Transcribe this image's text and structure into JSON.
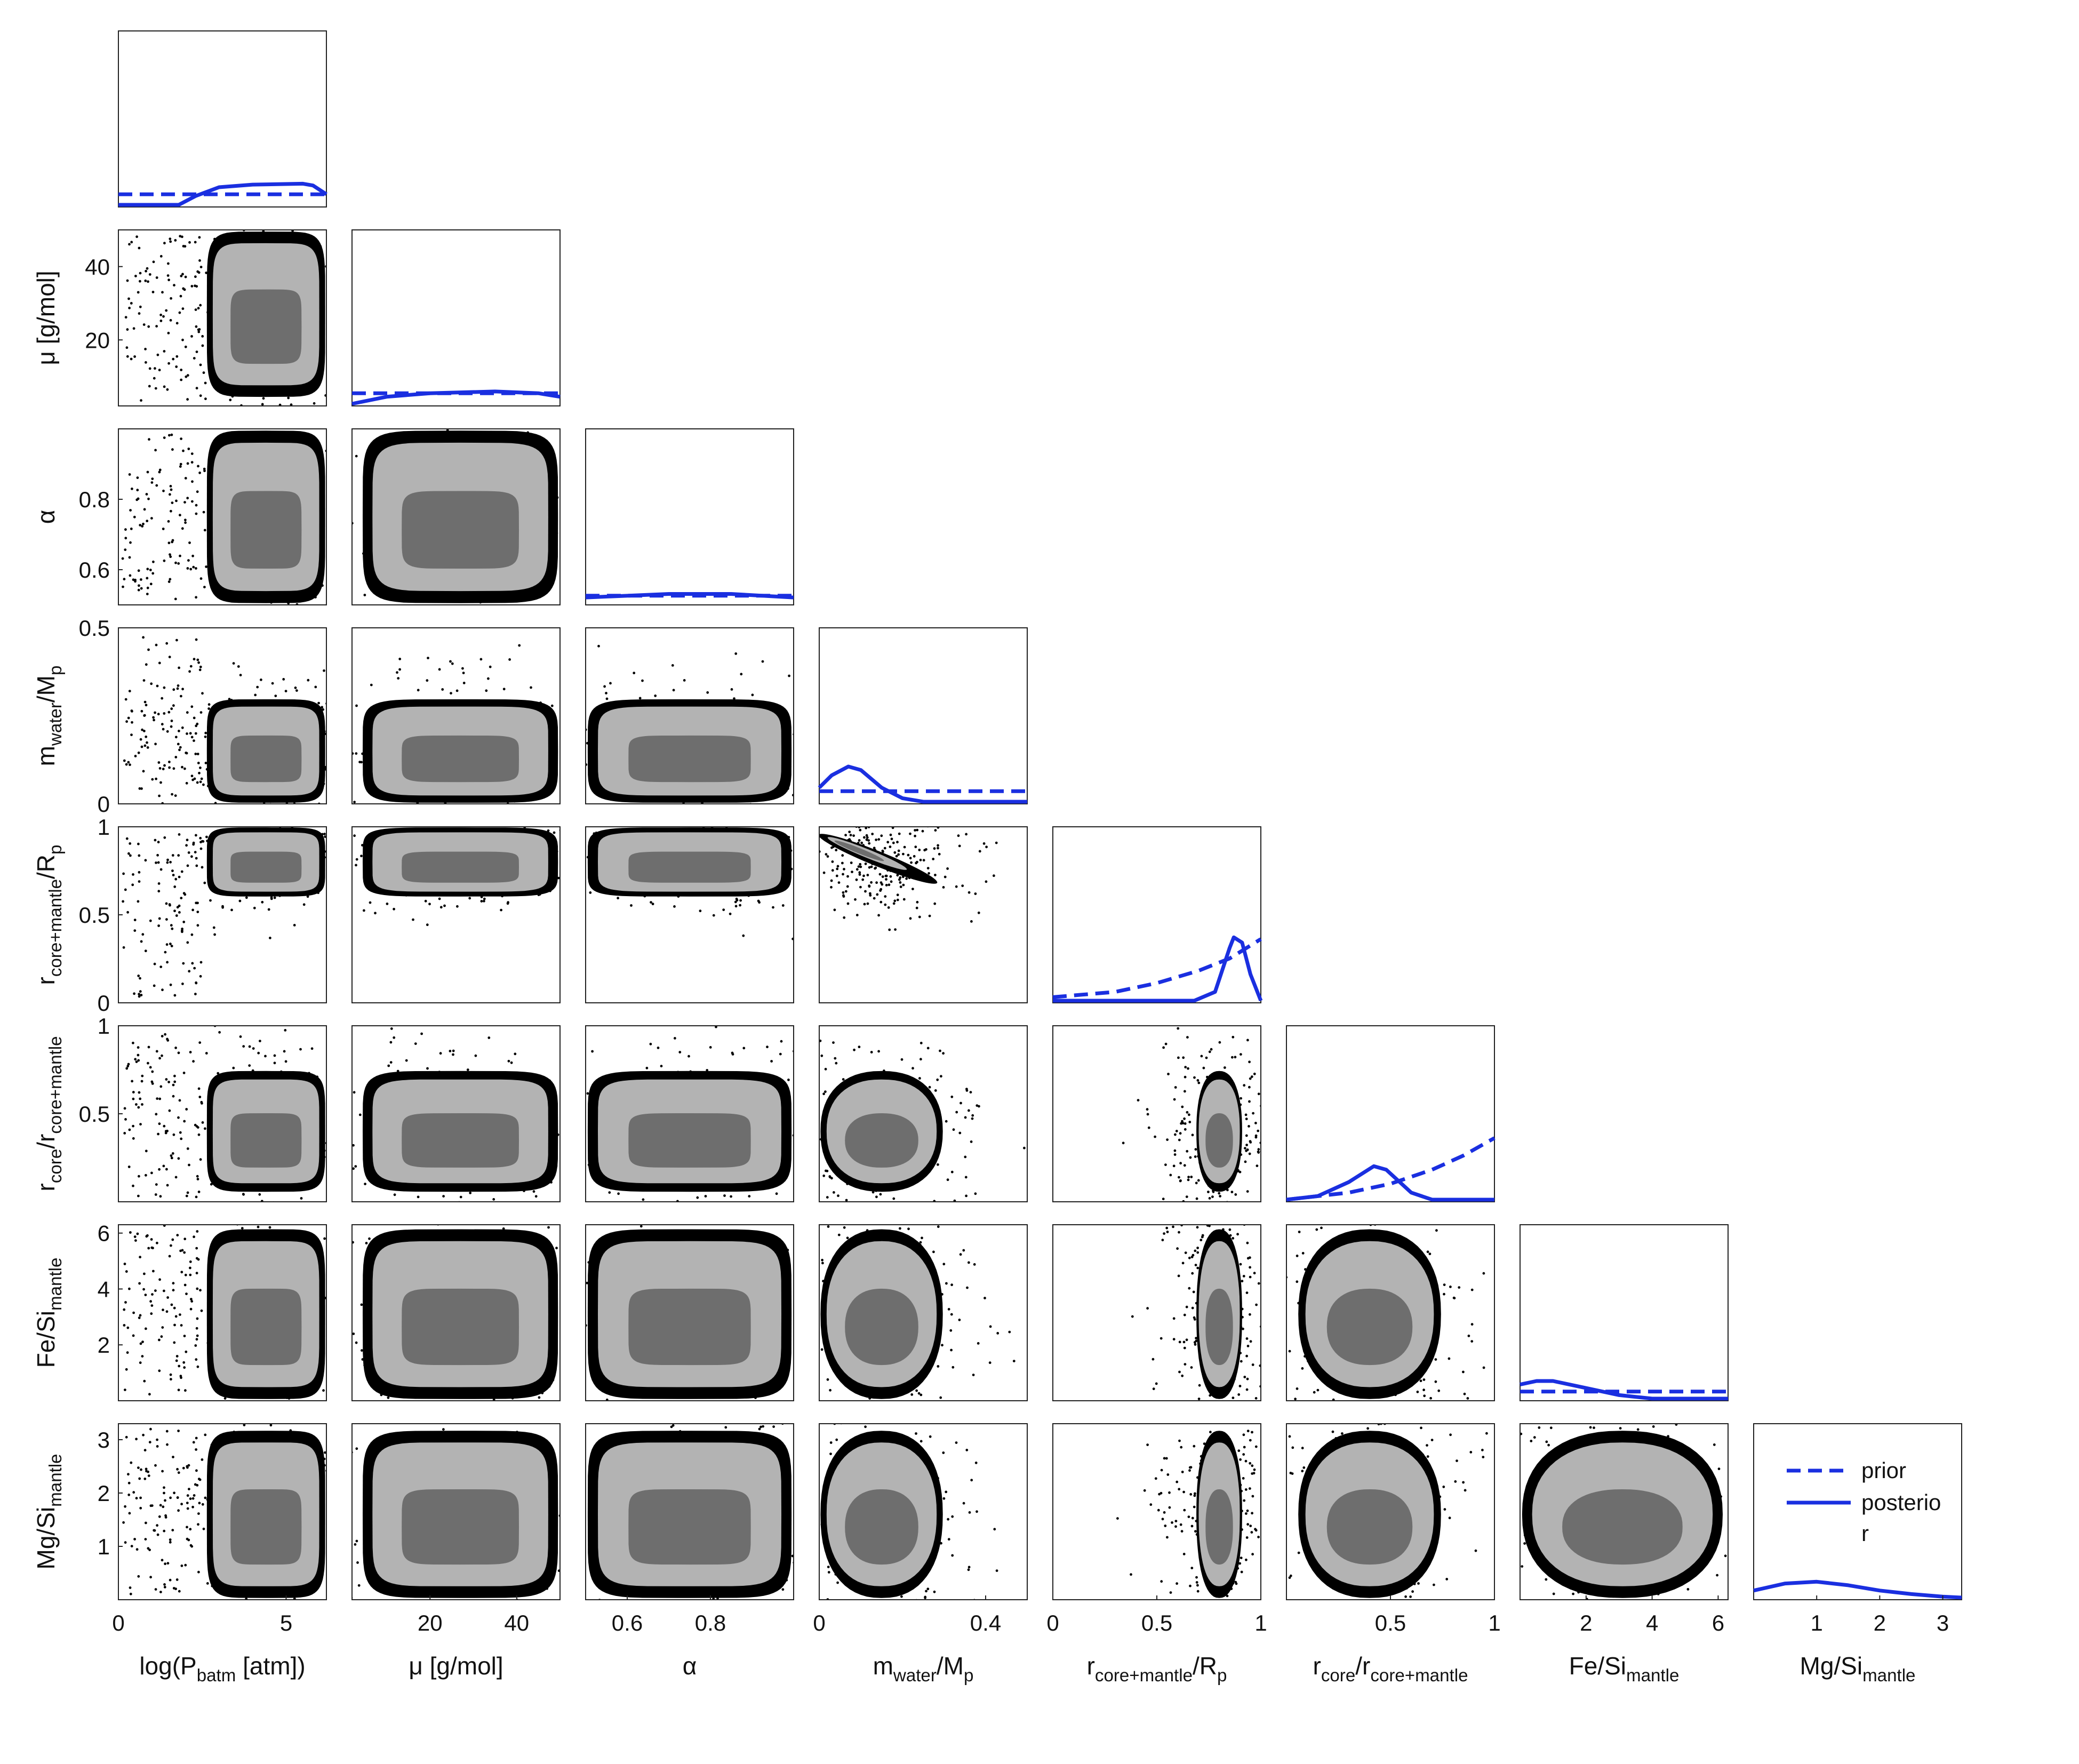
{
  "chart_data": {
    "type": "scatter",
    "variables": [
      "logP",
      "mu",
      "alpha",
      "mwater",
      "rcm",
      "rcore",
      "fesi",
      "mgsi"
    ],
    "x_axis_labels": [
      {
        "base": "log(P",
        "sub": "batm",
        "tail": " [atm])"
      },
      {
        "base": "μ [g/mol]",
        "sub": "",
        "tail": ""
      },
      {
        "base": "α",
        "sub": "",
        "tail": ""
      },
      {
        "base": "m",
        "sub": "water",
        "tail": "/M",
        "sub2": "p"
      },
      {
        "base": "r",
        "sub": "core+mantle",
        "tail": "/R",
        "sub2": "p"
      },
      {
        "base": "r",
        "sub": "core",
        "tail": "/r",
        "sub2": "core+mantle"
      },
      {
        "base": "Fe/Si",
        "sub": "mantle",
        "tail": ""
      },
      {
        "base": "Mg/Si",
        "sub": "mantle",
        "tail": ""
      }
    ],
    "y_axis_labels": [
      {
        "base": "μ [g/mol]",
        "sub": "",
        "tail": ""
      },
      {
        "base": "α",
        "sub": "",
        "tail": ""
      },
      {
        "base": "m",
        "sub": "water",
        "tail": "/M",
        "sub2": "p"
      },
      {
        "base": "r",
        "sub": "core+mantle",
        "tail": "/R",
        "sub2": "p"
      },
      {
        "base": "r",
        "sub": "core",
        "tail": "/r",
        "sub2": "core+mantle"
      },
      {
        "base": "Fe/Si",
        "sub": "mantle",
        "tail": ""
      },
      {
        "base": "Mg/Si",
        "sub": "mantle",
        "tail": ""
      }
    ],
    "ranges": {
      "logP": [
        0,
        6.2
      ],
      "mu": [
        2,
        50
      ],
      "alpha": [
        0.5,
        1.0
      ],
      "mwater": [
        0,
        0.5
      ],
      "rcm": [
        0,
        1
      ],
      "rcore": [
        0,
        1
      ],
      "fesi": [
        0,
        6.3
      ],
      "mgsi": [
        0,
        3.3
      ]
    },
    "x_ticks": {
      "logP": [
        "0",
        "5"
      ],
      "mu": [
        "20",
        "40"
      ],
      "alpha": [
        "0.6",
        "0.8"
      ],
      "mwater": [
        "0",
        "0.4"
      ],
      "rcm": [
        "0",
        "0.5",
        "1"
      ],
      "rcore": [
        "0.5",
        "1"
      ],
      "fesi": [
        "2",
        "4",
        "6"
      ],
      "mgsi": [
        "1",
        "2",
        "3"
      ]
    },
    "x_tick_values": {
      "logP": [
        0,
        5
      ],
      "mu": [
        20,
        40
      ],
      "alpha": [
        0.6,
        0.8
      ],
      "mwater": [
        0,
        0.4
      ],
      "rcm": [
        0,
        0.5,
        1
      ],
      "rcore": [
        0.5,
        1
      ],
      "fesi": [
        2,
        4,
        6
      ],
      "mgsi": [
        1,
        2,
        3
      ]
    },
    "y_ticks": {
      "mu": [
        "20",
        "40"
      ],
      "alpha": [
        "0.6",
        "0.8"
      ],
      "mwater": [
        "0",
        "0.5"
      ],
      "rcm": [
        "0",
        "0.5",
        "1"
      ],
      "rcore": [
        "0.5",
        "1"
      ],
      "fesi": [
        "2",
        "4",
        "6"
      ],
      "mgsi": [
        "1",
        "2",
        "3"
      ]
    },
    "y_tick_values": {
      "mu": [
        20,
        40
      ],
      "alpha": [
        0.6,
        0.8
      ],
      "mwater": [
        0,
        0.5
      ],
      "rcm": [
        0,
        0.5,
        1
      ],
      "rcore": [
        0.5,
        1
      ],
      "fesi": [
        2,
        4,
        6
      ],
      "mgsi": [
        1,
        2,
        3
      ]
    },
    "marginals": {
      "logP": {
        "prior": [
          [
            0,
            0.06
          ],
          [
            6.2,
            0.06
          ]
        ],
        "posterior": [
          [
            0,
            0.0
          ],
          [
            1.8,
            0.0
          ],
          [
            2.3,
            0.05
          ],
          [
            3.0,
            0.1
          ],
          [
            4.0,
            0.115
          ],
          [
            5.5,
            0.12
          ],
          [
            5.8,
            0.11
          ],
          [
            6.2,
            0.06
          ]
        ],
        "ymax": 1.0
      },
      "mu": {
        "prior": [
          [
            2,
            0.06
          ],
          [
            50,
            0.06
          ]
        ],
        "posterior": [
          [
            2,
            0.0
          ],
          [
            10,
            0.04
          ],
          [
            20,
            0.06
          ],
          [
            35,
            0.07
          ],
          [
            45,
            0.06
          ],
          [
            50,
            0.04
          ]
        ],
        "ymax": 1.0
      },
      "alpha": {
        "prior": [
          [
            0.5,
            0.04
          ],
          [
            1.0,
            0.04
          ]
        ],
        "posterior": [
          [
            0.5,
            0.03
          ],
          [
            0.7,
            0.05
          ],
          [
            0.85,
            0.05
          ],
          [
            1.0,
            0.03
          ]
        ],
        "ymax": 1.0
      },
      "mwater": {
        "prior": [
          [
            0,
            0.06
          ],
          [
            0.5,
            0.06
          ]
        ],
        "posterior": [
          [
            0,
            0.08
          ],
          [
            0.03,
            0.15
          ],
          [
            0.07,
            0.2
          ],
          [
            0.1,
            0.18
          ],
          [
            0.15,
            0.08
          ],
          [
            0.2,
            0.02
          ],
          [
            0.25,
            0.0
          ],
          [
            0.5,
            0.0
          ]
        ],
        "ymax": 1.0
      },
      "rcm": {
        "prior": [
          [
            0,
            0.02
          ],
          [
            0.3,
            0.05
          ],
          [
            0.5,
            0.1
          ],
          [
            0.7,
            0.17
          ],
          [
            0.85,
            0.24
          ],
          [
            1.0,
            0.35
          ]
        ],
        "posterior": [
          [
            0,
            0.0
          ],
          [
            0.68,
            0.0
          ],
          [
            0.78,
            0.05
          ],
          [
            0.85,
            0.3
          ],
          [
            0.87,
            0.36
          ],
          [
            0.91,
            0.33
          ],
          [
            0.95,
            0.15
          ],
          [
            1.0,
            0.0
          ]
        ],
        "ymax": 1.0
      },
      "rcore": {
        "prior": [
          [
            0,
            0.0
          ],
          [
            0.3,
            0.04
          ],
          [
            0.5,
            0.09
          ],
          [
            0.7,
            0.17
          ],
          [
            0.85,
            0.25
          ],
          [
            1.0,
            0.35
          ]
        ],
        "posterior": [
          [
            0,
            0.0
          ],
          [
            0.15,
            0.02
          ],
          [
            0.3,
            0.1
          ],
          [
            0.42,
            0.19
          ],
          [
            0.48,
            0.17
          ],
          [
            0.6,
            0.04
          ],
          [
            0.7,
            0.0
          ],
          [
            1.0,
            0.0
          ]
        ],
        "ymax": 1.0
      },
      "fesi": {
        "prior": [
          [
            0,
            0.04
          ],
          [
            6.3,
            0.04
          ]
        ],
        "posterior": [
          [
            0,
            0.08
          ],
          [
            0.5,
            0.1
          ],
          [
            1.0,
            0.1
          ],
          [
            2.0,
            0.06
          ],
          [
            3.0,
            0.02
          ],
          [
            4.0,
            0.0
          ],
          [
            6.3,
            0.0
          ]
        ],
        "ymax": 1.0
      },
      "mgsi": {
        "prior": [],
        "posterior": [
          [
            0,
            0.04
          ],
          [
            0.5,
            0.08
          ],
          [
            1.0,
            0.09
          ],
          [
            1.5,
            0.07
          ],
          [
            2.0,
            0.04
          ],
          [
            2.5,
            0.02
          ],
          [
            3.0,
            0.005
          ],
          [
            3.3,
            0.0
          ]
        ],
        "ymax": 1.0
      }
    },
    "colors": {
      "line": "#1a2fe0",
      "outer": "#000000",
      "mid": "#b3b3b3",
      "inner": "#6e6e6e",
      "frame": "#222222"
    },
    "legend": {
      "prior_label": "prior",
      "posterior_label_line1": "posterio",
      "posterior_label_line2": "r",
      "placement": "bottom-right panel"
    }
  }
}
